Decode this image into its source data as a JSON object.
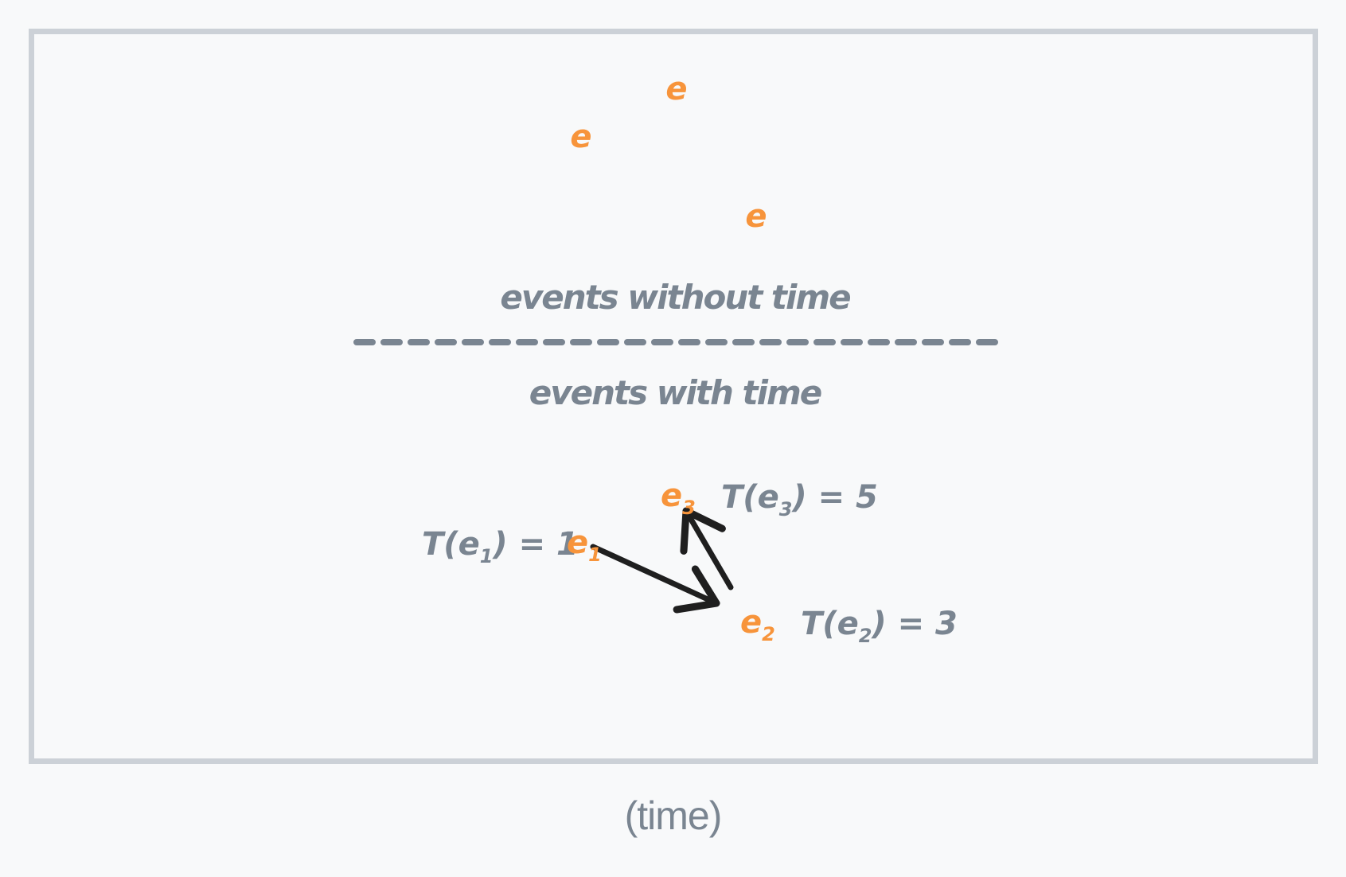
{
  "untimed_events": [
    {
      "label": "e"
    },
    {
      "label": "e"
    },
    {
      "label": "e"
    }
  ],
  "section_labels": {
    "without_time": "events without time",
    "with_time": "events with time"
  },
  "timed_events": [
    {
      "label": "e",
      "subscript": "1",
      "time_prefix": "T(e",
      "time_sub": "1",
      "time_suffix": ") = 1",
      "time": 1
    },
    {
      "label": "e",
      "subscript": "2",
      "time_prefix": "T(e",
      "time_sub": "2",
      "time_suffix": ") = 3",
      "time": 3
    },
    {
      "label": "e",
      "subscript": "3",
      "time_prefix": "T(e",
      "time_sub": "3",
      "time_suffix": ") = 5",
      "time": 5
    }
  ],
  "arrows": [
    {
      "from": "e1",
      "to": "e2"
    },
    {
      "from": "e2",
      "to": "e3"
    }
  ],
  "caption": "(time)",
  "colors": {
    "event": "#f7943b",
    "text": "#7a8591",
    "arrow": "#1f1f1f",
    "frame": "#ccd1d7"
  }
}
